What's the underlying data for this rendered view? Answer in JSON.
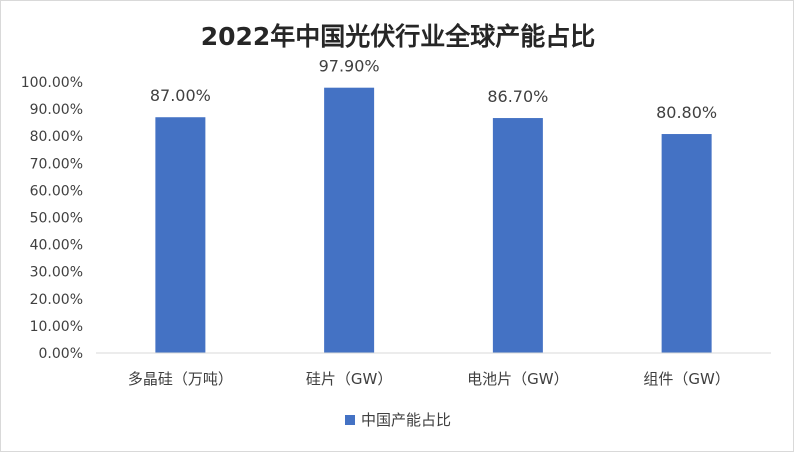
{
  "chart_data": {
    "type": "bar",
    "title": "2022年中国光伏行业全球产能占比",
    "categories": [
      "多晶硅（万吨）",
      "硅片（GW）",
      "电池片（GW）",
      "组件（GW）"
    ],
    "series": [
      {
        "name": "中国产能占比",
        "values": [
          87.0,
          97.9,
          86.7,
          80.8
        ],
        "color": "#4472c4"
      }
    ],
    "data_labels": [
      "87.00%",
      "97.90%",
      "86.70%",
      "80.80%"
    ],
    "y_ticks": [
      "0.00%",
      "10.00%",
      "20.00%",
      "30.00%",
      "40.00%",
      "50.00%",
      "60.00%",
      "70.00%",
      "80.00%",
      "90.00%",
      "100.00%"
    ],
    "ylim": [
      0,
      100
    ],
    "grid": false,
    "legend_position": "bottom"
  }
}
